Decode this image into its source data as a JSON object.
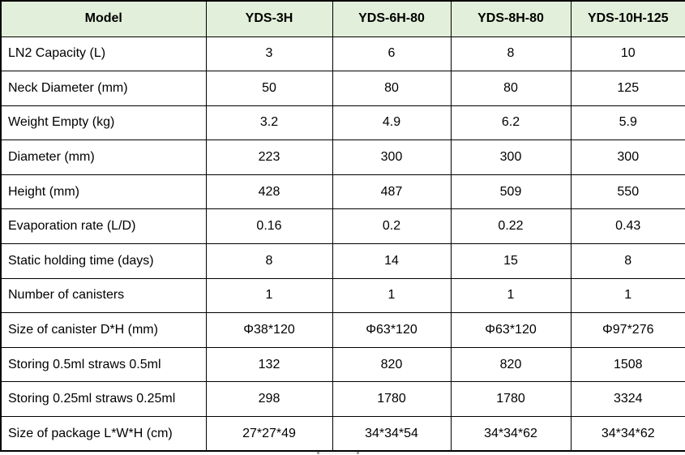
{
  "colors": {
    "header_bg": "#e2efda",
    "border": "#000000",
    "text": "#000000"
  },
  "table": {
    "header": [
      "Model",
      "YDS-3H",
      "YDS-6H-80",
      "YDS-8H-80",
      "YDS-10H-125"
    ],
    "rows": [
      {
        "label": "LN2 Capacity (L)",
        "values": [
          "3",
          "6",
          "8",
          "10"
        ]
      },
      {
        "label": "Neck Diameter (mm)",
        "values": [
          "50",
          "80",
          "80",
          "125"
        ]
      },
      {
        "label": "Weight Empty (kg)",
        "values": [
          "3.2",
          "4.9",
          "6.2",
          "5.9"
        ]
      },
      {
        "label": "Diameter (mm)",
        "values": [
          "223",
          "300",
          "300",
          "300"
        ]
      },
      {
        "label": "Height (mm)",
        "values": [
          "428",
          "487",
          "509",
          "550"
        ]
      },
      {
        "label": "Evaporation rate (L/D)",
        "values": [
          "0.16",
          "0.2",
          "0.22",
          "0.43"
        ]
      },
      {
        "label": "Static holding time (days)",
        "values": [
          "8",
          "14",
          "15",
          "8"
        ]
      },
      {
        "label": "Number of canisters",
        "values": [
          "1",
          "1",
          "1",
          "1"
        ]
      },
      {
        "label": "Size of canister D*H (mm)",
        "values": [
          "Φ38*120",
          "Φ63*120",
          "Φ63*120",
          "Φ97*276"
        ]
      },
      {
        "label": "Storing 0.5ml straws 0.5ml",
        "values": [
          "132",
          "820",
          "820",
          "1508"
        ]
      },
      {
        "label": "Storing 0.25ml straws 0.25ml",
        "values": [
          "298",
          "1780",
          "1780",
          "3324"
        ]
      },
      {
        "label": "Size of package L*W*H (cm)",
        "values": [
          "27*27*49",
          "34*34*54",
          "34*34*62",
          "34*34*62"
        ]
      }
    ]
  }
}
